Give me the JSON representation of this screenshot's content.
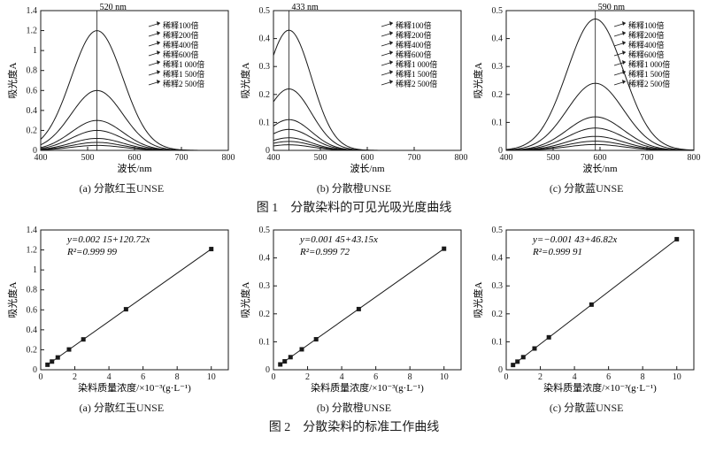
{
  "colors": {
    "bg": "#ffffff",
    "ink": "#1a1a1a",
    "curve": "#1a1a1a",
    "marker": "#1a1a1a"
  },
  "font": {
    "family": "SimSun",
    "tick": 10,
    "axis": 11,
    "sub": 12,
    "cap": 14,
    "legend": 9,
    "eq": 11
  },
  "fig1": {
    "caption": "图 1　分散染料的可见光吸光度曲线",
    "legend": [
      "稀释100倍",
      "稀释200倍",
      "稀释400倍",
      "稀释600倍",
      "稀释1 000倍",
      "稀释1 500倍",
      "稀释2 500倍"
    ],
    "x": {
      "label": "波长/nm",
      "min": 400,
      "max": 800,
      "ticks": [
        400,
        500,
        600,
        700,
        800
      ]
    },
    "panels": [
      {
        "sub": "(a) 分散红玉UNSE",
        "peak_nm": 520,
        "peak_label": "520 nm",
        "amps": [
          1.2,
          0.6,
          0.3,
          0.2,
          0.12,
          0.08,
          0.05
        ],
        "sigma": 55,
        "y": {
          "label": "吸光度A",
          "min": 0,
          "max": 1.4,
          "ticks": [
            0,
            0.2,
            0.4,
            0.6,
            0.8,
            1.0,
            1.2,
            1.4
          ]
        }
      },
      {
        "sub": "(b) 分散橙UNSE",
        "peak_nm": 433,
        "peak_label": "433 nm",
        "amps": [
          0.43,
          0.22,
          0.11,
          0.075,
          0.045,
          0.032,
          0.02
        ],
        "sigma": 48,
        "y": {
          "label": "吸光度A",
          "min": 0,
          "max": 0.5,
          "ticks": [
            0,
            0.1,
            0.2,
            0.3,
            0.4,
            0.5
          ]
        }
      },
      {
        "sub": "(c) 分散蓝UNSE",
        "peak_nm": 590,
        "peak_label": "590 nm",
        "amps": [
          0.47,
          0.24,
          0.12,
          0.08,
          0.05,
          0.033,
          0.021
        ],
        "sigma": 60,
        "y": {
          "label": "吸光度A",
          "min": 0,
          "max": 0.5,
          "ticks": [
            0,
            0.1,
            0.2,
            0.3,
            0.4,
            0.5
          ]
        }
      }
    ]
  },
  "fig2": {
    "caption": "图 2　分散染料的标准工作曲线",
    "x": {
      "label": "染料质量浓度/×10⁻³(g·L⁻¹)",
      "min": 0,
      "max": 11,
      "ticks": [
        0,
        2,
        4,
        6,
        8,
        10
      ]
    },
    "panels": [
      {
        "sub": "(a) 分散红玉UNSE",
        "eq": "y=0.002 15+120.72x",
        "r2": "R²=0.999 99",
        "y": {
          "label": "吸光度A",
          "min": 0,
          "max": 1.4,
          "ticks": [
            0,
            0.2,
            0.4,
            0.6,
            0.8,
            1.0,
            1.2,
            1.4
          ]
        },
        "pts": [
          [
            0.4,
            0.05
          ],
          [
            0.66,
            0.082
          ],
          [
            1,
            0.123
          ],
          [
            1.66,
            0.203
          ],
          [
            2.5,
            0.304
          ],
          [
            5,
            0.606
          ],
          [
            10,
            1.209
          ]
        ]
      },
      {
        "sub": "(b) 分散橙UNSE",
        "eq": "y=0.001 45+43.15x",
        "r2": "R²=0.999 72",
        "y": {
          "label": "吸光度A",
          "min": 0,
          "max": 0.5,
          "ticks": [
            0,
            0.1,
            0.2,
            0.3,
            0.4,
            0.5
          ]
        },
        "pts": [
          [
            0.4,
            0.019
          ],
          [
            0.66,
            0.03
          ],
          [
            1,
            0.045
          ],
          [
            1.66,
            0.073
          ],
          [
            2.5,
            0.109
          ],
          [
            5,
            0.217
          ],
          [
            10,
            0.433
          ]
        ]
      },
      {
        "sub": "(c) 分散蓝UNSE",
        "eq": "y=−0.001 43+46.82x",
        "r2": "R²=0.999 91",
        "y": {
          "label": "吸光度A",
          "min": 0,
          "max": 0.5,
          "ticks": [
            0,
            0.1,
            0.2,
            0.3,
            0.4,
            0.5
          ]
        },
        "pts": [
          [
            0.4,
            0.017
          ],
          [
            0.66,
            0.029
          ],
          [
            1,
            0.045
          ],
          [
            1.66,
            0.076
          ],
          [
            2.5,
            0.116
          ],
          [
            5,
            0.233
          ],
          [
            10,
            0.467
          ]
        ]
      }
    ]
  }
}
